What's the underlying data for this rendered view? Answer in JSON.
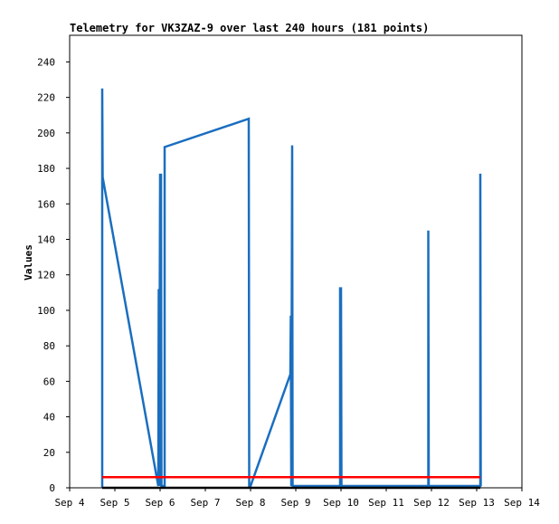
{
  "chart_data": {
    "type": "line",
    "title": "Telemetry for VK3ZAZ-9 over last 240 hours (181 points)",
    "xlabel": "",
    "ylabel": "Values",
    "x_tick_labels": [
      "Sep 4",
      "Sep 5",
      "Sep 6",
      "Sep 7",
      "Sep 8",
      "Sep 9",
      "Sep 10",
      "Sep 11",
      "Sep 12",
      "Sep 13",
      "Sep 14"
    ],
    "y_ticks": [
      0,
      20,
      40,
      60,
      80,
      100,
      120,
      140,
      160,
      180,
      200,
      220,
      240
    ],
    "xlim": [
      4,
      14
    ],
    "ylim": [
      0,
      255
    ],
    "grid": false,
    "legend": "none",
    "series": [
      {
        "color": "#1a6ebf",
        "points": [
          [
            4.72,
            0
          ],
          [
            4.72,
            225
          ],
          [
            4.73,
            175
          ],
          [
            5.96,
            1
          ],
          [
            5.97,
            112
          ],
          [
            5.98,
            1
          ],
          [
            6.0,
            177
          ],
          [
            6.01,
            1
          ],
          [
            6.02,
            177
          ],
          [
            6.03,
            1
          ],
          [
            6.1,
            1
          ],
          [
            6.1,
            192
          ],
          [
            7.96,
            208
          ],
          [
            7.97,
            1
          ],
          [
            8.0,
            1
          ],
          [
            8.88,
            64
          ],
          [
            8.89,
            97
          ],
          [
            8.9,
            1
          ],
          [
            8.92,
            193
          ],
          [
            8.93,
            1
          ],
          [
            9.98,
            1
          ],
          [
            9.98,
            113
          ],
          [
            9.99,
            1
          ],
          [
            10.0,
            113
          ],
          [
            10.01,
            1
          ],
          [
            11.93,
            1
          ],
          [
            11.93,
            145
          ],
          [
            11.94,
            1
          ],
          [
            13.08,
            1
          ],
          [
            13.08,
            177
          ],
          [
            13.09,
            1
          ]
        ]
      },
      {
        "color": "#ff0000",
        "points": [
          [
            4.72,
            6
          ],
          [
            13.08,
            6
          ]
        ]
      },
      {
        "color": "#000000",
        "points": [
          [
            4.72,
            0
          ],
          [
            13.08,
            0
          ]
        ]
      }
    ]
  }
}
